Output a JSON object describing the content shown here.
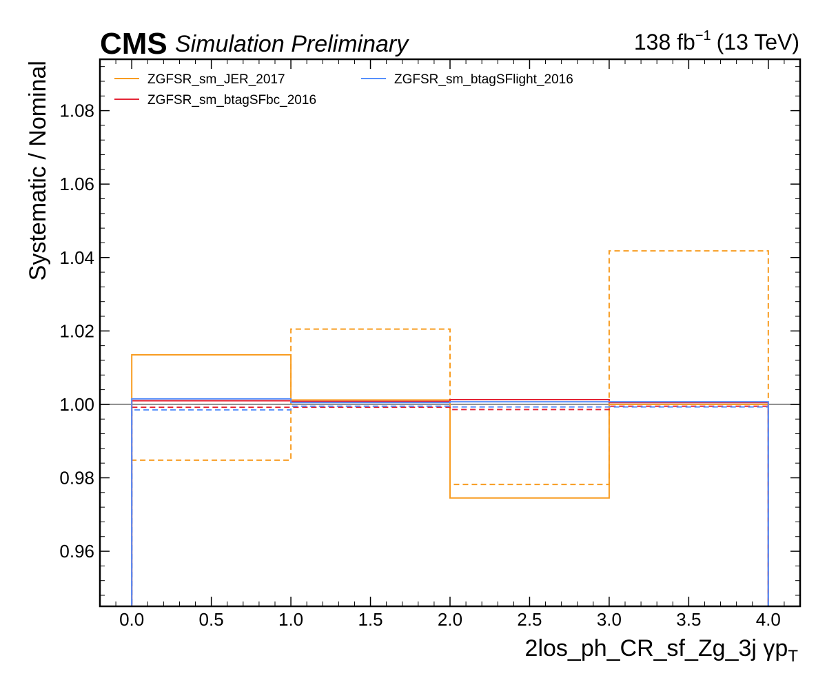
{
  "header": {
    "experiment": "CMS",
    "status": "Simulation Preliminary",
    "lumi_value": "138 fb",
    "lumi_exponent": "−1",
    "energy": "(13 TeV)"
  },
  "chart_data": {
    "type": "line",
    "style": "step",
    "xlabel": "2los_ph_CR_sf_Zg_3j   γp",
    "xlabel_subscript": "T",
    "ylabel": "Systematic / Nominal",
    "xlim": [
      -0.2,
      4.2
    ],
    "ylim": [
      0.945,
      1.094
    ],
    "xticks": [
      0.0,
      0.5,
      1.0,
      1.5,
      2.0,
      2.5,
      3.0,
      3.5,
      4.0
    ],
    "xtick_labels": [
      "0.0",
      "0.5",
      "1.0",
      "1.5",
      "2.0",
      "2.5",
      "3.0",
      "3.5",
      "4.0"
    ],
    "yticks": [
      0.96,
      0.98,
      1.0,
      1.02,
      1.04,
      1.06,
      1.08
    ],
    "ytick_labels": [
      "0.96",
      "0.98",
      "1.00",
      "1.02",
      "1.04",
      "1.06",
      "1.08"
    ],
    "bin_edges": [
      0,
      1,
      2,
      3,
      4
    ],
    "reference_line": 1.0,
    "grid": false,
    "legend_position": "top-left",
    "series": [
      {
        "name": "ZGFSR_sm_JER_2017",
        "color": "#f89c20",
        "up": [
          1.0135,
          1.0012,
          0.9745,
          1.0
        ],
        "down": [
          0.9848,
          1.0205,
          0.9782,
          1.0418
        ]
      },
      {
        "name": "ZGFSR_sm_btagSFbc_2016",
        "color": "#e42536",
        "up": [
          1.001,
          1.0008,
          1.0013,
          1.0005
        ],
        "down": [
          0.9992,
          0.9992,
          0.9986,
          0.9995
        ]
      },
      {
        "name": "ZGFSR_sm_btagSFlight_2016",
        "color": "#5790fc",
        "up": [
          1.0015,
          1.0005,
          1.0007,
          1.0007
        ],
        "down": [
          0.9985,
          0.9995,
          0.9993,
          0.9993
        ]
      }
    ]
  }
}
